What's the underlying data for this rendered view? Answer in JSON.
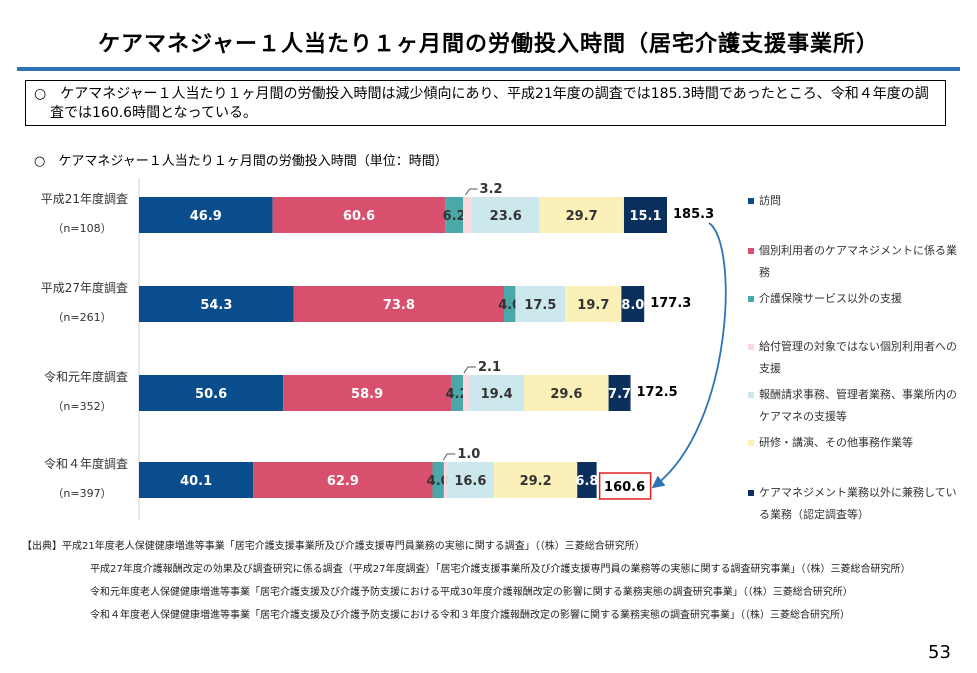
{
  "page": {
    "title": "ケアマネジャー１人当たり１ヶ月間の労働投入時間（居宅介護支援事業所）",
    "summary_marker": "○",
    "summary_text": "ケアマネジャー１人当たり１ヶ月間の労働投入時間は減少傾向にあり、平成21年度の調査では185.3時間であったところ、令和４年度の調査では160.6時間となっている。",
    "chart_caption": "○　ケアマネジャー１人当たり１ヶ月間の労働投入時間（単位：時間）",
    "page_number": "53"
  },
  "sources": [
    "【出典】平成21年度老人保健健康増進等事業「居宅介護支援事業所及び介護支援専門員業務の実態に関する調査」（（株）三菱総合研究所）",
    "平成27年度介護報酬改定の効果及び調査研究に係る調査（平成27年度調査）「居宅介護支援事業所及び介護支援専門員の業務等の実態に関する調査研究事業」（（株）三菱総合研究所）",
    "令和元年度老人保健健康増進等事業「居宅介護支援及び介護予防支援における平成30年度介護報酬改定の影響に関する業務実態の調査研究事業」（（株）三菱総合研究所）",
    "令和４年度老人保健健康増進等事業「居宅介護支援及び介護予防支援における令和３年度介護報酬改定の影響に関する業務実態の調査研究事業」（（株）三菱総合研究所）"
  ],
  "chart_data": {
    "type": "bar",
    "orientation": "horizontal",
    "stacked": true,
    "unit": "時間",
    "categories": [
      {
        "label": "平成21年度調査",
        "n": "（n=108）",
        "total": "185.3"
      },
      {
        "label": "平成27年度調査",
        "n": "（n=261）",
        "total": "177.3"
      },
      {
        "label": "令和元年度調査",
        "n": "（n=352）",
        "total": "172.5"
      },
      {
        "label": "令和４年度調査",
        "n": "（n=397）",
        "total": "160.6"
      }
    ],
    "series": [
      {
        "name": "訪問",
        "color": "#0a4d8c",
        "label_color": "#ffffff",
        "values": [
          46.9,
          54.3,
          50.6,
          40.1
        ]
      },
      {
        "name": "個別利用者のケアマネジメントに係る業務",
        "color": "#d9506e",
        "label_color": "#ffffff",
        "values": [
          60.6,
          73.8,
          58.9,
          62.9
        ]
      },
      {
        "name": "介護保険サービス以外の支援",
        "color": "#4aa8a8",
        "label_color": "#333333",
        "values": [
          6.2,
          4.0,
          4.2,
          4.0
        ]
      },
      {
        "name": "給付管理の対象ではない個別利用者への支援",
        "color": "#f9d9e0",
        "label_color": "#333333",
        "values": [
          3.2,
          0,
          2.1,
          1.0
        ]
      },
      {
        "name": "報酬請求事務、管理者業務、事業所内のケアマネの支援等",
        "color": "#cde8ec",
        "label_color": "#333333",
        "values": [
          23.6,
          17.5,
          19.4,
          16.6
        ]
      },
      {
        "name": "研修・講演、その他事務作業等",
        "color": "#fbf1b8",
        "label_color": "#333333",
        "values": [
          29.7,
          19.7,
          29.6,
          29.2
        ]
      },
      {
        "name": "ケアマネジメント業務以外に兼務している業務（認定調査等）",
        "color": "#0a2f5c",
        "label_color": "#ffffff",
        "values": [
          15.1,
          8.0,
          7.7,
          6.8
        ]
      }
    ],
    "external_labels": [
      "3.2",
      "",
      "2.1",
      "1.0"
    ],
    "xlim": [
      0,
      185.3
    ],
    "highlight": {
      "category_index": 3,
      "value": "160.6",
      "box_color": "#e02020"
    },
    "arrow": {
      "from": "185.3",
      "to": "160.6",
      "color": "#2e74b5"
    }
  }
}
